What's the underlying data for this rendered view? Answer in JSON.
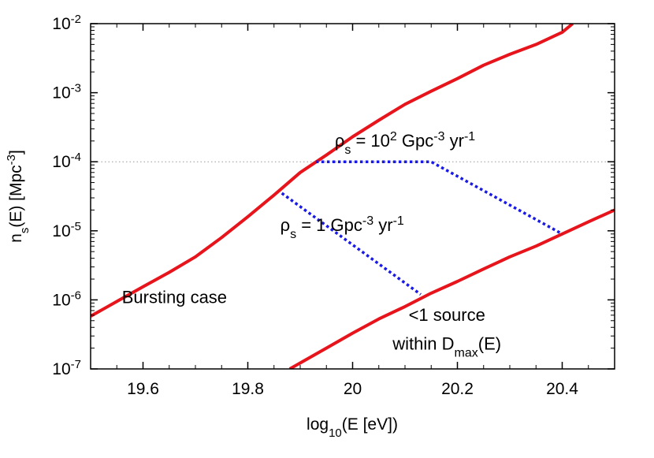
{
  "chart_data": {
    "type": "line",
    "title": "",
    "xlabel": {
      "main": "log",
      "sub": "10",
      "rest": "(E [eV])"
    },
    "ylabel": {
      "p1": "n",
      "s1": "s",
      "p2": "(E) [Mpc",
      "sup": "-3",
      "p3": "]"
    },
    "xlim": [
      19.5,
      20.5
    ],
    "ylim": [
      1e-07,
      0.01
    ],
    "yscale": "log",
    "grid": false,
    "x_ticks": [
      "19.6",
      "19.8",
      "20",
      "20.2",
      "20.4"
    ],
    "x_tick_values": [
      19.6,
      19.8,
      20.0,
      20.2,
      20.4
    ],
    "y_ticks": [
      {
        "value": 1e-07,
        "base": "10",
        "exp": "-7"
      },
      {
        "value": 1e-06,
        "base": "10",
        "exp": "-6"
      },
      {
        "value": 1e-05,
        "base": "10",
        "exp": "-5"
      },
      {
        "value": 0.0001,
        "base": "10",
        "exp": "-4"
      },
      {
        "value": 0.001,
        "base": "10",
        "exp": "-3"
      },
      {
        "value": 0.01,
        "base": "10",
        "exp": "-2"
      }
    ],
    "reference_line": {
      "y": 0.0001,
      "color": "#999999"
    },
    "series": [
      {
        "color": "#e8141c",
        "style": "solid",
        "x": [
          19.5,
          19.55,
          19.6,
          19.65,
          19.7,
          19.75,
          19.8,
          19.85,
          19.9,
          19.95,
          20.0,
          20.05,
          20.1,
          20.15,
          20.2,
          20.25,
          20.3,
          20.35,
          20.4,
          20.42
        ],
        "y": [
          5.8e-07,
          9.5e-07,
          1.55e-06,
          2.5e-06,
          4.2e-06,
          8e-06,
          1.6e-05,
          3.3e-05,
          7e-05,
          0.000125,
          0.00023,
          0.0004,
          0.00068,
          0.00105,
          0.0016,
          0.0025,
          0.0036,
          0.005,
          0.0075,
          0.01
        ]
      },
      {
        "color": "#e8141c",
        "style": "solid",
        "x": [
          19.88,
          19.95,
          20.0,
          20.05,
          20.1,
          20.15,
          20.2,
          20.25,
          20.3,
          20.35,
          20.4,
          20.45,
          20.5
        ],
        "y": [
          1e-07,
          2e-07,
          3.3e-07,
          5.3e-07,
          8e-07,
          1.25e-06,
          1.85e-06,
          2.8e-06,
          4.2e-06,
          6e-06,
          9e-06,
          1.35e-05,
          2e-05
        ]
      },
      {
        "color": "#1a1ae6",
        "style": "dotted",
        "x": [
          19.93,
          20.15,
          20.4
        ],
        "y": [
          0.0001,
          0.0001,
          9e-06
        ]
      },
      {
        "color": "#1a1ae6",
        "style": "dotted",
        "x": [
          19.865,
          20.13
        ],
        "y": [
          3.5e-05,
          1.2e-06
        ]
      }
    ],
    "annotations": [
      {
        "id": "rho-high",
        "x": 20.1,
        "y": 0.000165,
        "parts": [
          {
            "t": "ρ"
          },
          {
            "t": "s",
            "shift": "sub"
          },
          {
            "t": " = 10"
          },
          {
            "t": "2",
            "shift": "super"
          },
          {
            "t": " Gpc"
          },
          {
            "t": "-3",
            "shift": "super"
          },
          {
            "t": " yr"
          },
          {
            "t": "-1",
            "shift": "super"
          }
        ]
      },
      {
        "id": "rho-low",
        "x": 19.98,
        "y": 1e-05,
        "parts": [
          {
            "t": "ρ"
          },
          {
            "t": "s",
            "shift": "sub"
          },
          {
            "t": " = 1 Gpc"
          },
          {
            "t": "-3",
            "shift": "super"
          },
          {
            "t": " yr"
          },
          {
            "t": "-1",
            "shift": "super"
          }
        ]
      },
      {
        "id": "bursting",
        "x": 19.66,
        "y": 9e-07,
        "parts": [
          {
            "t": "Bursting case"
          }
        ]
      },
      {
        "id": "less-than-one",
        "x": 20.18,
        "y": 5e-07,
        "parts": [
          {
            "t": "<1 source"
          }
        ]
      },
      {
        "id": "within-dmax",
        "x": 20.18,
        "y": 1.9e-07,
        "parts": [
          {
            "t": "within D"
          },
          {
            "t": "max",
            "shift": "sub"
          },
          {
            "t": "(E)"
          }
        ]
      }
    ]
  }
}
